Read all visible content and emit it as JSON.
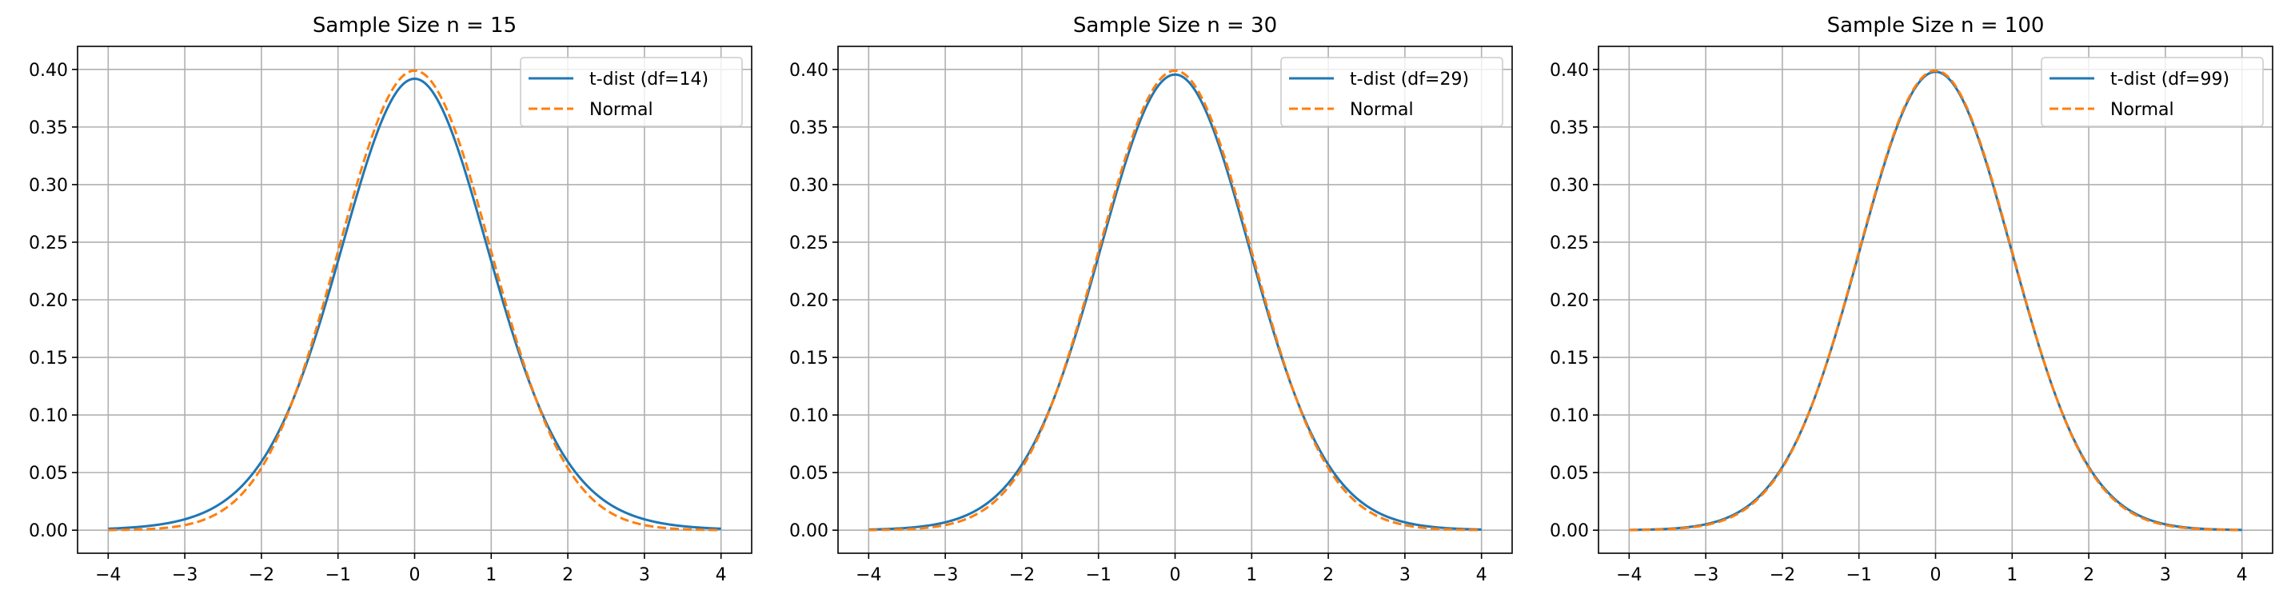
{
  "chart_data": [
    {
      "type": "line",
      "title": "Sample Size n = 15",
      "xlabel": "",
      "ylabel": "",
      "xlim": [
        -4.4,
        4.4
      ],
      "ylim": [
        -0.02,
        0.42
      ],
      "xticks": [
        -4,
        -3,
        -2,
        -1,
        0,
        1,
        2,
        3,
        4
      ],
      "xtick_labels": [
        "−4",
        "−3",
        "−2",
        "−1",
        "0",
        "1",
        "2",
        "3",
        "4"
      ],
      "yticks": [
        0,
        0.05,
        0.1,
        0.15,
        0.2,
        0.25,
        0.3,
        0.35,
        0.4
      ],
      "ytick_labels": [
        "0.00",
        "0.05",
        "0.10",
        "0.15",
        "0.20",
        "0.25",
        "0.30",
        "0.35",
        "0.40"
      ],
      "grid": true,
      "legend_position": "top-right",
      "x_range": [
        -4,
        4
      ],
      "series": [
        {
          "name": "t-dist (df=14)",
          "kind": "t",
          "df": 14,
          "color": "#1f77b4",
          "style": "solid"
        },
        {
          "name": "Normal",
          "kind": "normal",
          "color": "#ff7f0e",
          "style": "dashed"
        }
      ]
    },
    {
      "type": "line",
      "title": "Sample Size n = 30",
      "xlabel": "",
      "ylabel": "",
      "xlim": [
        -4.4,
        4.4
      ],
      "ylim": [
        -0.02,
        0.42
      ],
      "xticks": [
        -4,
        -3,
        -2,
        -1,
        0,
        1,
        2,
        3,
        4
      ],
      "xtick_labels": [
        "−4",
        "−3",
        "−2",
        "−1",
        "0",
        "1",
        "2",
        "3",
        "4"
      ],
      "yticks": [
        0,
        0.05,
        0.1,
        0.15,
        0.2,
        0.25,
        0.3,
        0.35,
        0.4
      ],
      "ytick_labels": [
        "0.00",
        "0.05",
        "0.10",
        "0.15",
        "0.20",
        "0.25",
        "0.30",
        "0.35",
        "0.40"
      ],
      "grid": true,
      "legend_position": "top-right",
      "x_range": [
        -4,
        4
      ],
      "series": [
        {
          "name": "t-dist (df=29)",
          "kind": "t",
          "df": 29,
          "color": "#1f77b4",
          "style": "solid"
        },
        {
          "name": "Normal",
          "kind": "normal",
          "color": "#ff7f0e",
          "style": "dashed"
        }
      ]
    },
    {
      "type": "line",
      "title": "Sample Size n = 100",
      "xlabel": "",
      "ylabel": "",
      "xlim": [
        -4.4,
        4.4
      ],
      "ylim": [
        -0.02,
        0.42
      ],
      "xticks": [
        -4,
        -3,
        -2,
        -1,
        0,
        1,
        2,
        3,
        4
      ],
      "xtick_labels": [
        "−4",
        "−3",
        "−2",
        "−1",
        "0",
        "1",
        "2",
        "3",
        "4"
      ],
      "yticks": [
        0,
        0.05,
        0.1,
        0.15,
        0.2,
        0.25,
        0.3,
        0.35,
        0.4
      ],
      "ytick_labels": [
        "0.00",
        "0.05",
        "0.10",
        "0.15",
        "0.20",
        "0.25",
        "0.30",
        "0.35",
        "0.40"
      ],
      "grid": true,
      "legend_position": "top-right",
      "x_range": [
        -4,
        4
      ],
      "series": [
        {
          "name": "t-dist (df=99)",
          "kind": "t",
          "df": 99,
          "color": "#1f77b4",
          "style": "solid"
        },
        {
          "name": "Normal",
          "kind": "normal",
          "color": "#ff7f0e",
          "style": "dashed"
        }
      ]
    }
  ]
}
